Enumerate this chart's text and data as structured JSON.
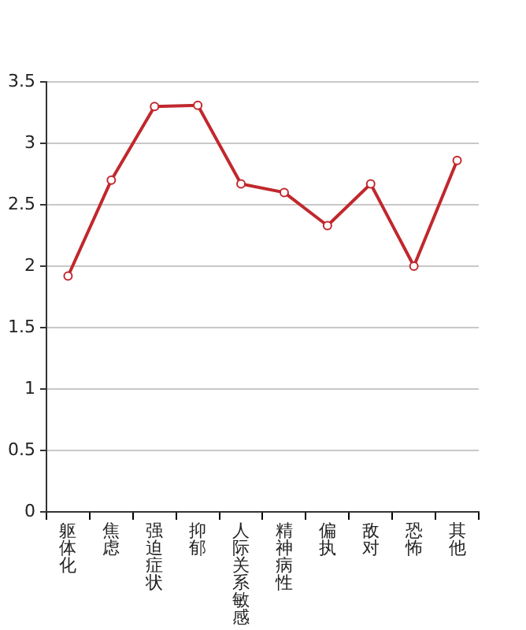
{
  "chart_data": {
    "type": "line",
    "categories": [
      "躯体化",
      "焦虑",
      "强迫症状",
      "抑郁",
      "人际关系敏感",
      "精神病性",
      "偏执",
      "敌对",
      "恐怖",
      "其他"
    ],
    "series": [
      {
        "color": "#c0282d",
        "values": [
          1.92,
          2.7,
          3.3,
          3.31,
          2.67,
          2.6,
          2.33,
          2.67,
          2.0,
          2.86
        ]
      }
    ],
    "ylim": [
      0,
      3.5
    ],
    "yticks": [
      0,
      0.5,
      1,
      1.5,
      2,
      2.5,
      3,
      3.5
    ],
    "grid": "y",
    "legend": false,
    "marker": "circle",
    "line_style": "solid"
  }
}
